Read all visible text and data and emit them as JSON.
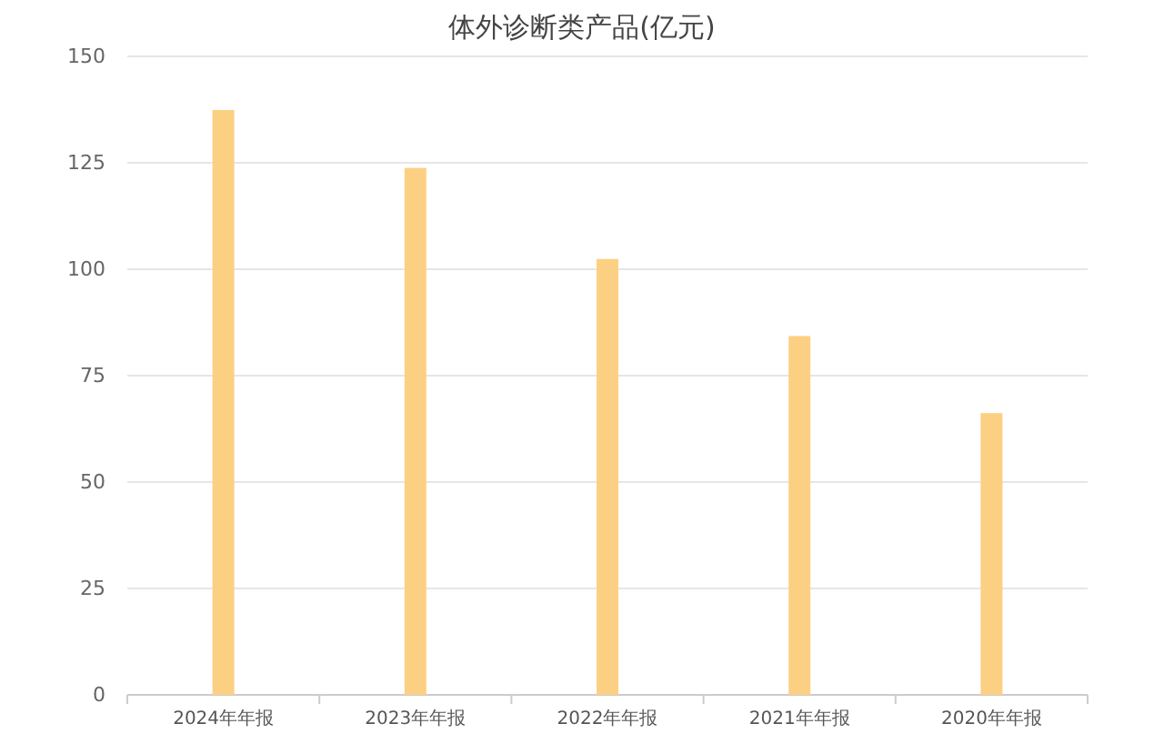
{
  "chart_data": {
    "type": "bar",
    "title": "体外诊断类产品(亿元)",
    "categories": [
      "2024年年报",
      "2023年年报",
      "2022年年报",
      "2021年年报",
      "2020年年报"
    ],
    "values": [
      137.4,
      123.8,
      102.4,
      84.3,
      66.2
    ],
    "color": "#fcd083",
    "ylim": [
      0,
      150
    ],
    "yticks": [
      0,
      25,
      50,
      75,
      100,
      125,
      150
    ],
    "grid": "y"
  }
}
